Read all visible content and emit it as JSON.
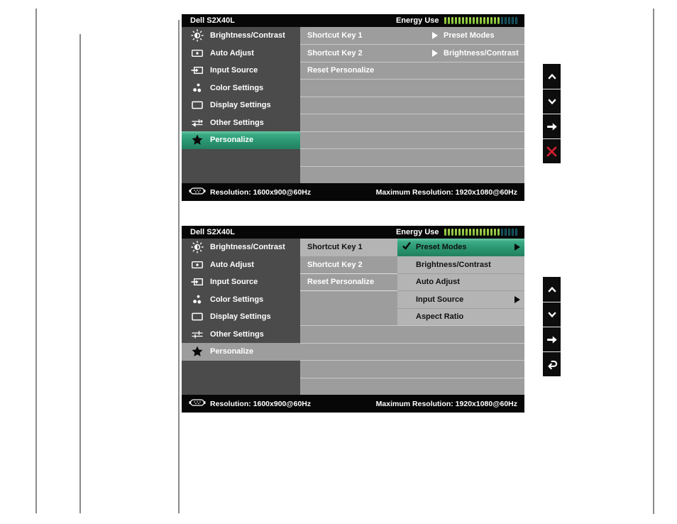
{
  "shared": {
    "title": "Dell S2X40L",
    "energy_label": "Energy Use",
    "energy_gauge": {
      "segments_filled": 16,
      "segments_empty": 5,
      "filled_color": "#7cbb35",
      "empty_color": "#0b3038"
    },
    "sidebar_items": [
      {
        "icon": "brightness-contrast-icon",
        "label": "Brightness/Contrast"
      },
      {
        "icon": "auto-adjust-icon",
        "label": "Auto Adjust"
      },
      {
        "icon": "input-source-icon",
        "label": "Input Source"
      },
      {
        "icon": "color-settings-icon",
        "label": "Color Settings"
      },
      {
        "icon": "display-settings-icon",
        "label": "Display Settings"
      },
      {
        "icon": "other-settings-icon",
        "label": "Other Settings"
      },
      {
        "icon": "personalize-star-icon",
        "label": "Personalize"
      }
    ],
    "footer": {
      "resolution": "Resolution: 1600x900@60Hz",
      "max_resolution": "Maximum Resolution: 1920x1080@60Hz"
    },
    "colors": {
      "highlight_green": "#2b9672",
      "sidebar_gray": "#4b4b4b",
      "menu_gray": "#9d9d9d",
      "row_light_gray": "#b4b4b4",
      "close_red": "#d11f2f"
    }
  },
  "osd_top": {
    "active_sidebar_item": "Personalize",
    "menu_rows": [
      {
        "label": "Shortcut Key 1",
        "value": "Preset Modes"
      },
      {
        "label": "Shortcut Key 2",
        "value": "Brightness/Contrast"
      },
      {
        "label": "Reset Personalize",
        "value": ""
      }
    ]
  },
  "osd_bottom": {
    "active_sidebar_item": "Personalize",
    "active_menu_row": "Shortcut Key 1",
    "menu_rows": [
      {
        "label": "Shortcut Key 1"
      },
      {
        "label": "Shortcut Key 2"
      },
      {
        "label": "Reset Personalize"
      }
    ],
    "submenu": [
      {
        "label": "Preset Modes",
        "checked": true,
        "arrow": true,
        "selected": true
      },
      {
        "label": "Brightness/Contrast",
        "checked": false,
        "arrow": false,
        "selected": false
      },
      {
        "label": "Auto Adjust",
        "checked": false,
        "arrow": false,
        "selected": false
      },
      {
        "label": "Input Source",
        "checked": false,
        "arrow": true,
        "selected": false
      },
      {
        "label": "Aspect Ratio",
        "checked": false,
        "arrow": false,
        "selected": false
      }
    ]
  },
  "controls_top": {
    "buttons": [
      "up",
      "down",
      "right",
      "close"
    ]
  },
  "controls_bottom": {
    "buttons": [
      "up",
      "down",
      "right",
      "back"
    ]
  }
}
